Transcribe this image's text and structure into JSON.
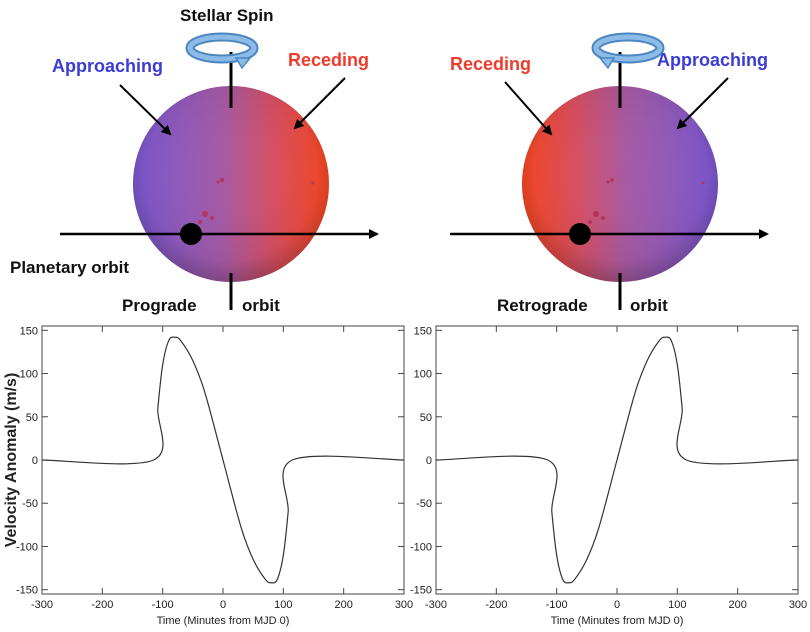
{
  "labels": {
    "stellar_spin": "Stellar Spin",
    "left_approaching": "Approaching",
    "left_receding": "Receding",
    "right_receding": "Receding",
    "right_approaching": "Approaching",
    "planetary_orbit": "Planetary orbit",
    "prograde_word": "Prograde",
    "retrograde_word": "Retrograde",
    "orbit_word_left": "orbit",
    "orbit_word_right": "orbit"
  },
  "colors": {
    "approaching": "#3b3bd6",
    "receding": "#ef3b2c",
    "spin_arrow": "#5b9bd5"
  },
  "chart_data": [
    {
      "type": "line",
      "title": "",
      "xlabel": "Time (Minutes from MJD 0)",
      "ylabel": "Velocity Anomaly (m/s)",
      "xlim": [
        -300,
        300
      ],
      "ylim": [
        -155,
        155
      ],
      "xticks": [
        "-300",
        "-200",
        "-100",
        "0",
        "100",
        "200",
        "300"
      ],
      "yticks": [
        "-150",
        "-100",
        "-50",
        "0",
        "50",
        "100",
        "150"
      ],
      "x": [
        -300,
        -115,
        -108,
        -100,
        -90,
        -80,
        -70,
        -50,
        -30,
        0,
        30,
        50,
        70,
        80,
        90,
        100,
        108,
        115,
        300
      ],
      "y": [
        0,
        0,
        60,
        110,
        138,
        142,
        138,
        115,
        78,
        0,
        -78,
        -115,
        -138,
        -142,
        -138,
        -110,
        -60,
        0,
        0
      ]
    },
    {
      "type": "line",
      "title": "",
      "xlabel": "Time (Minutes from MJD 0)",
      "ylabel": "",
      "xlim": [
        -300,
        300
      ],
      "ylim": [
        -155,
        155
      ],
      "xticks": [
        "-300",
        "-200",
        "-100",
        "0",
        "100",
        "200",
        "300"
      ],
      "yticks": [
        "-150",
        "-100",
        "-50",
        "0",
        "50",
        "100",
        "150"
      ],
      "x": [
        -300,
        -115,
        -108,
        -100,
        -90,
        -80,
        -70,
        -50,
        -30,
        0,
        30,
        50,
        70,
        80,
        90,
        100,
        108,
        115,
        300
      ],
      "y": [
        0,
        0,
        -60,
        -110,
        -138,
        -142,
        -138,
        -115,
        -78,
        0,
        78,
        115,
        138,
        142,
        138,
        110,
        60,
        0,
        0
      ]
    }
  ]
}
